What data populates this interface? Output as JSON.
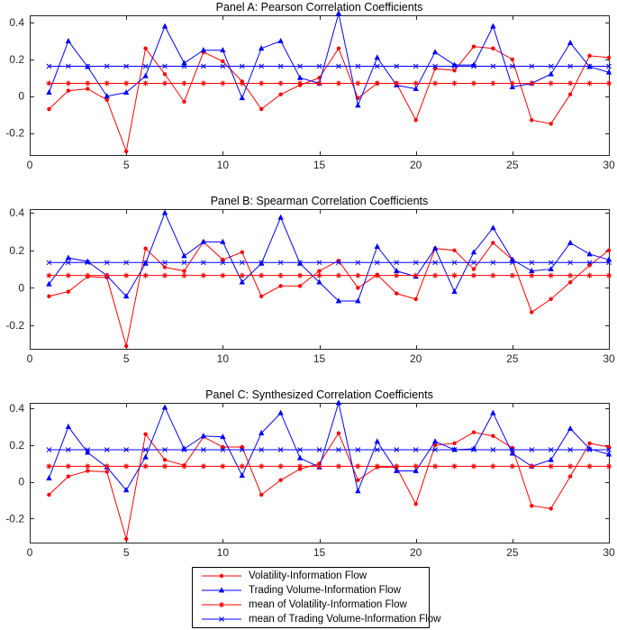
{
  "colors": {
    "volatility": "#ff0000",
    "trading_volume": "#0000ff",
    "axis": "#262626",
    "tick_label": "#262626",
    "title": "#000000",
    "legend_border": "#000000"
  },
  "chart_data": [
    {
      "type": "line",
      "title": "Panel A: Pearson Correlation Coefficients",
      "xlim": [
        0,
        30
      ],
      "ylim": [
        -0.32,
        0.44
      ],
      "x_ticks": [
        0,
        5,
        10,
        15,
        20,
        25,
        30
      ],
      "y_ticks": [
        0.4,
        0.2,
        0,
        -0.2
      ],
      "grid": false,
      "x": [
        1,
        2,
        3,
        4,
        5,
        6,
        7,
        8,
        9,
        10,
        11,
        12,
        13,
        14,
        15,
        16,
        17,
        18,
        19,
        20,
        21,
        22,
        23,
        24,
        25,
        26,
        27,
        28,
        29,
        30
      ],
      "series": [
        {
          "name": "Volatility-Information Flow",
          "color": "#ff0000",
          "marker": "dot",
          "values": [
            -0.07,
            0.03,
            0.04,
            -0.02,
            -0.3,
            0.26,
            0.12,
            -0.03,
            0.24,
            0.19,
            0.08,
            -0.07,
            0.01,
            0.06,
            0.1,
            0.26,
            -0.01,
            0.07,
            0.07,
            -0.13,
            0.15,
            0.14,
            0.27,
            0.26,
            0.2,
            -0.13,
            -0.15,
            0.01,
            0.22,
            0.21
          ]
        },
        {
          "name": "Trading Volume-Information Flow",
          "color": "#0000ff",
          "marker": "triangle",
          "values": [
            0.02,
            0.3,
            0.16,
            0.0,
            0.02,
            0.11,
            0.38,
            0.18,
            0.25,
            0.25,
            -0.01,
            0.26,
            0.3,
            0.1,
            0.07,
            0.45,
            -0.05,
            0.21,
            0.06,
            0.04,
            0.24,
            0.17,
            0.17,
            0.38,
            0.05,
            0.07,
            0.12,
            0.29,
            0.16,
            0.13
          ]
        },
        {
          "name": "mean of Volatility-Information Flow",
          "color": "#ff0000",
          "marker": "asterisk",
          "mean_value": 0.07
        },
        {
          "name": "mean of Trading Volume-Information Flow",
          "color": "#0000ff",
          "marker": "x",
          "mean_value": 0.163
        }
      ]
    },
    {
      "type": "line",
      "title": "Panel B: Spearman Correlation Coefficients",
      "xlim": [
        0,
        30
      ],
      "ylim": [
        -0.325,
        0.42
      ],
      "x_ticks": [
        0,
        5,
        10,
        15,
        20,
        25,
        30
      ],
      "y_ticks": [
        0.4,
        0.2,
        0,
        -0.2
      ],
      "grid": false,
      "x": [
        1,
        2,
        3,
        4,
        5,
        6,
        7,
        8,
        9,
        10,
        11,
        12,
        13,
        14,
        15,
        16,
        17,
        18,
        19,
        20,
        21,
        22,
        23,
        24,
        25,
        26,
        27,
        28,
        29,
        30
      ],
      "series": [
        {
          "name": "Volatility-Information Flow",
          "color": "#ff0000",
          "marker": "dot",
          "values": [
            -0.045,
            -0.02,
            0.06,
            0.055,
            -0.31,
            0.21,
            0.11,
            0.09,
            0.245,
            0.15,
            0.19,
            -0.045,
            0.01,
            0.01,
            0.09,
            0.145,
            0.0,
            0.07,
            -0.03,
            -0.06,
            0.21,
            0.2,
            0.1,
            0.24,
            0.15,
            -0.13,
            -0.06,
            0.03,
            0.12,
            0.2
          ]
        },
        {
          "name": "Trading Volume-Information Flow",
          "color": "#0000ff",
          "marker": "triangle",
          "values": [
            0.02,
            0.16,
            0.14,
            0.065,
            -0.045,
            0.13,
            0.4,
            0.17,
            0.245,
            0.245,
            0.03,
            0.13,
            0.375,
            0.13,
            0.03,
            -0.07,
            -0.07,
            0.22,
            0.09,
            0.06,
            0.21,
            -0.02,
            0.19,
            0.32,
            0.15,
            0.09,
            0.1,
            0.24,
            0.18,
            0.15
          ]
        },
        {
          "name": "mean of Volatility-Information Flow",
          "color": "#ff0000",
          "marker": "asterisk",
          "mean_value": 0.066
        },
        {
          "name": "mean of Trading Volume-Information Flow",
          "color": "#0000ff",
          "marker": "x",
          "mean_value": 0.135
        }
      ]
    },
    {
      "type": "line",
      "title": "Panel C: Synthesized Correlation Coefficients",
      "xlim": [
        0,
        30
      ],
      "ylim": [
        -0.33,
        0.43
      ],
      "x_ticks": [
        0,
        5,
        10,
        15,
        20,
        25,
        30
      ],
      "y_ticks": [
        0.4,
        0.2,
        0,
        -0.2
      ],
      "grid": false,
      "x": [
        1,
        2,
        3,
        4,
        5,
        6,
        7,
        8,
        9,
        10,
        11,
        12,
        13,
        14,
        15,
        16,
        17,
        18,
        19,
        20,
        21,
        22,
        23,
        24,
        25,
        26,
        27,
        28,
        29,
        30
      ],
      "series": [
        {
          "name": "Volatility-Information Flow",
          "color": "#ff0000",
          "marker": "dot",
          "values": [
            -0.07,
            0.03,
            0.06,
            0.055,
            -0.31,
            0.26,
            0.12,
            0.09,
            0.245,
            0.19,
            0.19,
            -0.07,
            0.01,
            0.07,
            0.1,
            0.265,
            0.01,
            0.08,
            0.08,
            -0.12,
            0.2,
            0.21,
            0.27,
            0.25,
            0.185,
            -0.13,
            -0.145,
            0.03,
            0.21,
            0.19
          ]
        },
        {
          "name": "Trading Volume-Information Flow",
          "color": "#0000ff",
          "marker": "triangle",
          "values": [
            0.02,
            0.3,
            0.16,
            0.08,
            -0.045,
            0.135,
            0.405,
            0.18,
            0.25,
            0.245,
            0.035,
            0.265,
            0.375,
            0.13,
            0.08,
            0.43,
            -0.05,
            0.22,
            0.06,
            0.06,
            0.22,
            0.175,
            0.18,
            0.375,
            0.155,
            0.085,
            0.12,
            0.29,
            0.18,
            0.15
          ]
        },
        {
          "name": "mean of Volatility-Information Flow",
          "color": "#ff0000",
          "marker": "asterisk",
          "mean_value": 0.085
        },
        {
          "name": "mean of Trading Volume-Information Flow",
          "color": "#0000ff",
          "marker": "x",
          "mean_value": 0.175
        }
      ]
    }
  ],
  "legend": {
    "items": [
      {
        "label": "Volatility-Information Flow",
        "color": "#ff0000",
        "marker": "dot"
      },
      {
        "label": "Trading Volume-Information Flow",
        "color": "#0000ff",
        "marker": "triangle"
      },
      {
        "label": "mean of Volatility-Information Flow",
        "color": "#ff0000",
        "marker": "asterisk"
      },
      {
        "label": "mean of Trading Volume-Information Flow",
        "color": "#0000ff",
        "marker": "x"
      }
    ],
    "position": "south-outside"
  }
}
